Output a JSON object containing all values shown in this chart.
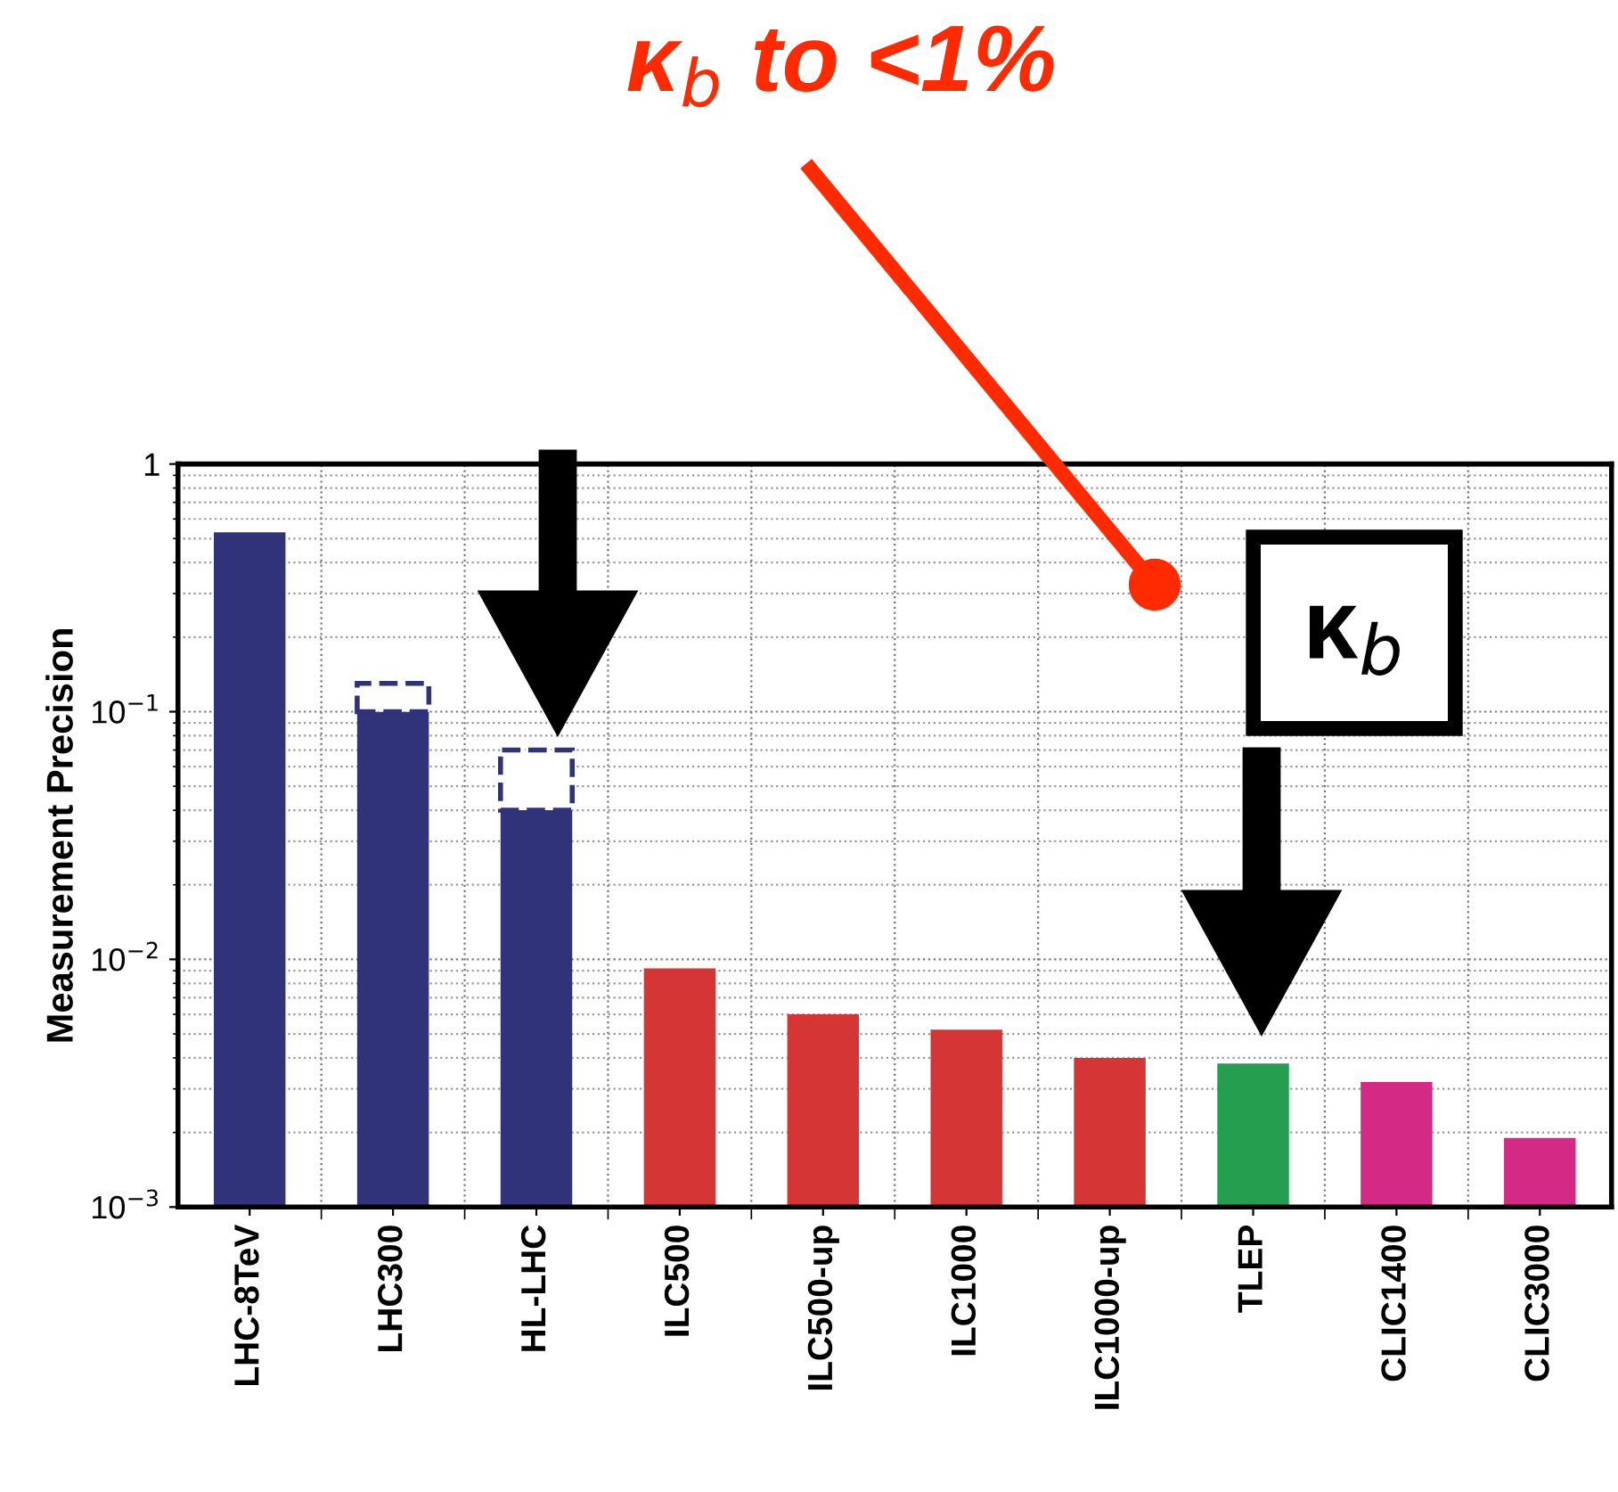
{
  "chart_data": {
    "type": "bar",
    "ylabel": "Measurement Precision",
    "categories": [
      "LHC-8TeV",
      "LHC300",
      "HL-LHC",
      "ILC500",
      "ILC500-up",
      "ILC1000",
      "ILC1000-up",
      "TLEP",
      "CLIC1400",
      "CLIC3000"
    ],
    "stacked": true,
    "series": [
      {
        "colors": [
          "#30337a",
          "#30337a",
          "#30337a",
          "#d63535",
          "#d63535",
          "#d63535",
          "#d63535",
          "#259e4f",
          "#d42a85",
          "#d42a85"
        ],
        "values": [
          0.53,
          0.1,
          0.04,
          0.0092,
          0.006,
          0.0052,
          0.004,
          0.0038,
          0.0032,
          0.0019
        ]
      },
      {
        "color": "#ffffff",
        "line_style": "dashed",
        "values": [
          null,
          0.03,
          0.03,
          null,
          null,
          null,
          null,
          null,
          null,
          null
        ]
      }
    ],
    "log": "y",
    "ylim": [
      0.001,
      1
    ],
    "yticks": [
      {
        "value": 0.001,
        "label": "10$^{−3}$"
      },
      {
        "value": 0.01,
        "label": "10$^{−2}$"
      },
      {
        "value": 0.1,
        "label": "10$^{−1}$"
      },
      1
    ],
    "grid": true,
    "annotations": [
      "κ$_{b}$ to <1%",
      "κ$_{b}$"
    ]
  }
}
